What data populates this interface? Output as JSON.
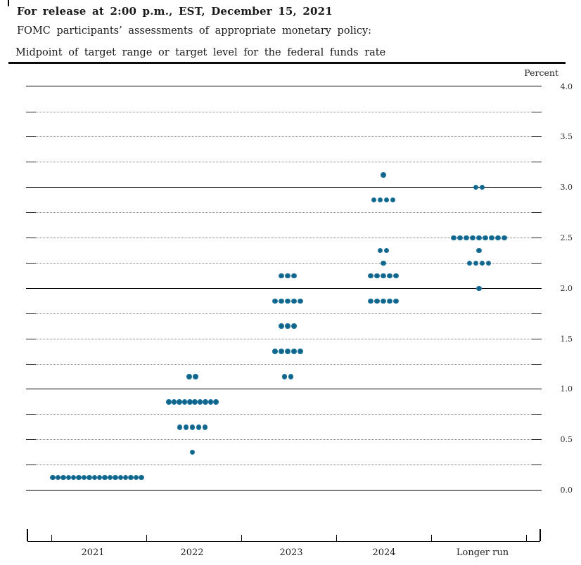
{
  "header": {
    "release_line": "For release at 2:00 p.m., EST, December 15, 2021",
    "description_line": "FOMC participants’ assessments of appropriate monetary policy:",
    "chart_title_line": "Midpoint of target range or target level for the federal funds rate"
  },
  "chart_data": {
    "type": "scatter",
    "title": "Midpoint of target range or target level for the federal funds rate",
    "ylabel": "Percent",
    "ylim": [
      0.0,
      4.0
    ],
    "gridline_step": 0.25,
    "solid_gridlines_at": [
      0.0,
      1.0,
      2.0,
      3.0,
      4.0
    ],
    "grid_on": true,
    "legend_position": "none",
    "dot_color": "#19719c",
    "y_tick_labels": [
      {
        "value": 4.0,
        "label": "4.0"
      },
      {
        "value": 3.5,
        "label": "3.5"
      },
      {
        "value": 3.0,
        "label": "3.0"
      },
      {
        "value": 2.5,
        "label": "2.5"
      },
      {
        "value": 2.0,
        "label": "2.0"
      },
      {
        "value": 1.5,
        "label": "1.5"
      },
      {
        "value": 1.0,
        "label": "1.0"
      },
      {
        "value": 0.5,
        "label": "0.5"
      },
      {
        "value": 0.0,
        "label": "0.0"
      }
    ],
    "categories": [
      "2021",
      "2022",
      "2023",
      "2024",
      "Longer run"
    ],
    "distributions": [
      {
        "category": "2021",
        "dots": [
          {
            "rate": 0.125,
            "count": 18
          }
        ]
      },
      {
        "category": "2022",
        "dots": [
          {
            "rate": 1.125,
            "count": 2
          },
          {
            "rate": 0.875,
            "count": 10
          },
          {
            "rate": 0.625,
            "count": 5
          },
          {
            "rate": 0.375,
            "count": 1
          }
        ]
      },
      {
        "category": "2023",
        "dots": [
          {
            "rate": 2.125,
            "count": 3
          },
          {
            "rate": 1.875,
            "count": 5
          },
          {
            "rate": 1.625,
            "count": 3
          },
          {
            "rate": 1.375,
            "count": 5
          },
          {
            "rate": 1.125,
            "count": 2
          }
        ]
      },
      {
        "category": "2024",
        "dots": [
          {
            "rate": 3.125,
            "count": 1
          },
          {
            "rate": 2.875,
            "count": 4
          },
          {
            "rate": 2.375,
            "count": 2
          },
          {
            "rate": 2.25,
            "count": 1
          },
          {
            "rate": 2.125,
            "count": 5
          },
          {
            "rate": 1.875,
            "count": 5
          }
        ]
      },
      {
        "category": "Longer run",
        "dots": [
          {
            "rate": 3.0,
            "count": 2
          },
          {
            "rate": 2.5,
            "count": 9
          },
          {
            "rate": 2.375,
            "count": 1
          },
          {
            "rate": 2.25,
            "count": 4
          },
          {
            "rate": 2.0,
            "count": 1
          }
        ]
      }
    ]
  }
}
